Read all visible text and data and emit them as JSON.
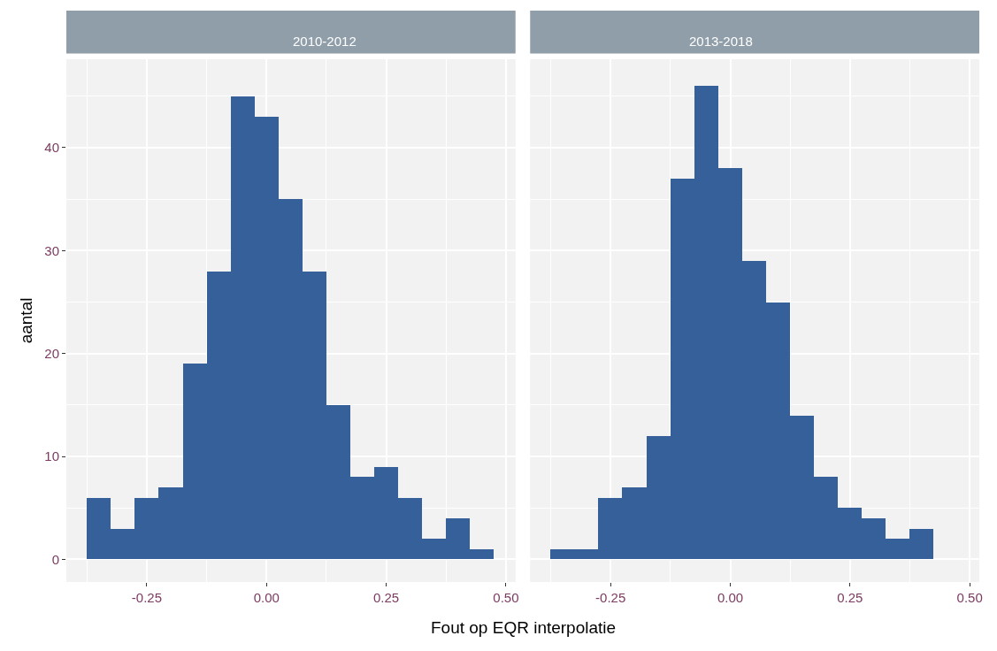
{
  "chart_data": [
    {
      "type": "histogram",
      "title": "2010-2012",
      "xlabel": "Fout op EQR interpolatie",
      "ylabel": "aantal",
      "color": "#36609a",
      "bins": [
        -0.375,
        -0.325,
        -0.275,
        -0.225,
        -0.175,
        -0.125,
        -0.075,
        -0.025,
        0.025,
        0.075,
        0.125,
        0.175,
        0.225,
        0.275,
        0.325,
        0.375,
        0.425,
        0.475
      ],
      "values": [
        6,
        3,
        6,
        7,
        19,
        28,
        45,
        43,
        35,
        28,
        15,
        8,
        9,
        6,
        2,
        4,
        1
      ],
      "xlim": [
        -0.418,
        0.52
      ],
      "xticks": [
        {
          "value": -0.25,
          "label": "-0.25"
        },
        {
          "value": 0,
          "label": "0.00"
        },
        {
          "value": 0.25,
          "label": "0.25"
        },
        {
          "value": 0.5,
          "label": "0.50"
        }
      ],
      "ylim": [
        -2.2,
        48.6
      ],
      "yticks": [
        0,
        10,
        20,
        30,
        40
      ],
      "grid": true
    },
    {
      "type": "histogram",
      "title": "2013-2018",
      "color": "#36609a",
      "bins": [
        -0.375,
        -0.325,
        -0.275,
        -0.225,
        -0.175,
        -0.125,
        -0.075,
        -0.025,
        0.025,
        0.075,
        0.125,
        0.175,
        0.225,
        0.275,
        0.325,
        0.375,
        0.425
      ],
      "values": [
        1,
        1,
        6,
        7,
        12,
        37,
        46,
        38,
        29,
        25,
        14,
        8,
        5,
        4,
        2,
        3
      ],
      "xlim": [
        -0.418,
        0.52
      ],
      "xticks": [
        {
          "value": -0.25,
          "label": "-0.25"
        },
        {
          "value": 0,
          "label": "0.00"
        },
        {
          "value": 0.25,
          "label": "0.25"
        },
        {
          "value": 0.5,
          "label": "0.50"
        }
      ],
      "ylim": [
        -2.2,
        48.6
      ],
      "yticks": [
        0,
        10,
        20,
        30,
        40
      ],
      "grid": true,
      "tick_labels": "x"
    }
  ]
}
